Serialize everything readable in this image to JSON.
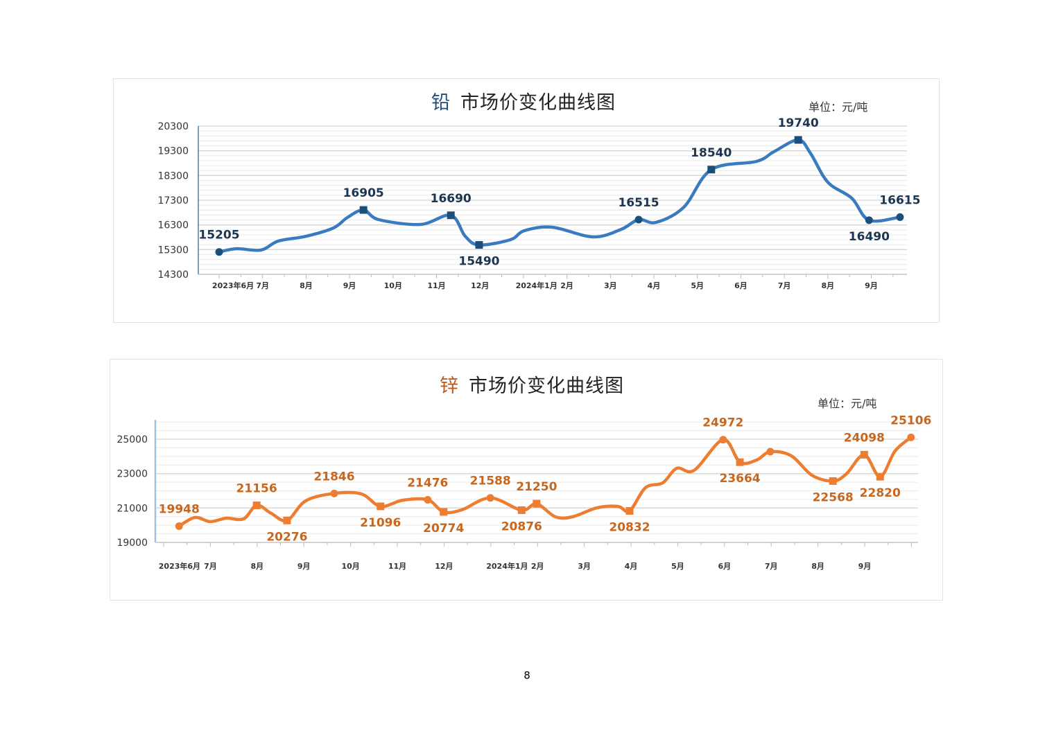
{
  "page_number": "8",
  "chart_data": [
    {
      "type": "line",
      "title_metal": "铅",
      "title_rest": "市场价变化曲线图",
      "unit": "单位：元/吨",
      "line_color": "#3a7bbf",
      "marker_color": "#1b4f7a",
      "label_color": "#1c3550",
      "title_metal_color": "#1f4e79",
      "ylim": [
        14300,
        20300
      ],
      "yticks": [
        14300,
        15300,
        16300,
        17300,
        18300,
        19300,
        20300
      ],
      "ytick_labels": [
        "14300",
        "15300",
        "16300",
        "17300",
        "18300",
        "19300",
        "20300"
      ],
      "minor_step": 200,
      "xlim": [
        -0.6,
        15.7
      ],
      "xticks": [
        {
          "m": 0.32,
          "label": "2023年6月"
        },
        {
          "m": 1,
          "label": "7月"
        },
        {
          "m": 2,
          "label": "8月"
        },
        {
          "m": 3,
          "label": "9月"
        },
        {
          "m": 4,
          "label": "10月"
        },
        {
          "m": 5,
          "label": "11月"
        },
        {
          "m": 6,
          "label": "12月"
        },
        {
          "m": 7.3,
          "label": "2024年1月"
        },
        {
          "m": 8,
          "label": "2月"
        },
        {
          "m": 9,
          "label": "3月"
        },
        {
          "m": 10,
          "label": "4月"
        },
        {
          "m": 11,
          "label": "5月"
        },
        {
          "m": 12,
          "label": "6月"
        },
        {
          "m": 13,
          "label": "7月"
        },
        {
          "m": 14,
          "label": "8月"
        },
        {
          "m": 15,
          "label": "9月"
        }
      ],
      "points": [
        {
          "m": 0,
          "v": 15205,
          "label": "15205",
          "marker": "circle",
          "pos": "above"
        },
        {
          "m": 0.4,
          "v": 15337
        },
        {
          "m": 0.96,
          "v": 15281
        },
        {
          "m": 1.36,
          "v": 15646
        },
        {
          "m": 2.0,
          "v": 15842
        },
        {
          "m": 2.63,
          "v": 16178
        },
        {
          "m": 2.95,
          "v": 16599
        },
        {
          "m": 3.32,
          "v": 16905,
          "label": "16905",
          "marker": "square",
          "pos": "above"
        },
        {
          "m": 3.67,
          "v": 16515
        },
        {
          "m": 4.63,
          "v": 16319
        },
        {
          "m": 5.33,
          "v": 16690,
          "label": "16690",
          "marker": "square",
          "pos": "above"
        },
        {
          "m": 5.66,
          "v": 15842
        },
        {
          "m": 5.98,
          "v": 15490,
          "label": "15490",
          "marker": "square",
          "pos": "below"
        },
        {
          "m": 6.7,
          "v": 15702
        },
        {
          "m": 7.02,
          "v": 16066
        },
        {
          "m": 7.66,
          "v": 16206
        },
        {
          "m": 8.6,
          "v": 15814
        },
        {
          "m": 9.25,
          "v": 16122
        },
        {
          "m": 9.65,
          "v": 16515,
          "label": "16515",
          "marker": "circle",
          "pos": "above"
        },
        {
          "m": 10.05,
          "v": 16403
        },
        {
          "m": 10.69,
          "v": 17020
        },
        {
          "m": 11.32,
          "v": 18540,
          "label": "18540",
          "marker": "square",
          "pos": "above"
        },
        {
          "m": 12.36,
          "v": 18870
        },
        {
          "m": 12.76,
          "v": 19262
        },
        {
          "m": 13.32,
          "v": 19740,
          "label": "19740",
          "marker": "square",
          "pos": "above"
        },
        {
          "m": 13.6,
          "v": 19205
        },
        {
          "m": 14.0,
          "v": 18029
        },
        {
          "m": 14.55,
          "v": 17384
        },
        {
          "m": 14.95,
          "v": 16490,
          "label": "16490",
          "marker": "circle",
          "pos": "below"
        },
        {
          "m": 15.66,
          "v": 16615,
          "label": "16615",
          "marker": "circle",
          "pos": "above"
        }
      ]
    },
    {
      "type": "line",
      "title_metal": "锌",
      "title_rest": "市场价变化曲线图",
      "unit": "单位：元/吨",
      "line_color": "#ed7d31",
      "marker_color": "#ed7d31",
      "label_color": "#c8661e",
      "title_metal_color": "#b85c1e",
      "ylim": [
        19000,
        25000
      ],
      "yticks": [
        19000,
        21000,
        23000,
        25000
      ],
      "ytick_labels": [
        "19000",
        "21000",
        "23000",
        "25000"
      ],
      "minor_step": 500,
      "xlim": [
        -0.2,
        16.3
      ],
      "xticks": [
        {
          "m": 0.34,
          "label": "2023年6月"
        },
        {
          "m": 1,
          "label": "7月"
        },
        {
          "m": 2,
          "label": "8月"
        },
        {
          "m": 3,
          "label": "9月"
        },
        {
          "m": 4,
          "label": "10月"
        },
        {
          "m": 5,
          "label": "11月"
        },
        {
          "m": 6,
          "label": "12月"
        },
        {
          "m": 7.35,
          "label": "2024年1月"
        },
        {
          "m": 8,
          "label": "2月"
        },
        {
          "m": 9,
          "label": "3月"
        },
        {
          "m": 10,
          "label": "4月"
        },
        {
          "m": 11,
          "label": "5月"
        },
        {
          "m": 12,
          "label": "6月"
        },
        {
          "m": 13,
          "label": "7月"
        },
        {
          "m": 14,
          "label": "8月"
        },
        {
          "m": 15,
          "label": "9月"
        }
      ],
      "points": [
        {
          "m": 0.33,
          "v": 19948,
          "label": "19948",
          "marker": "circle",
          "pos": "above"
        },
        {
          "m": 0.67,
          "v": 20450
        },
        {
          "m": 1.0,
          "v": 20208
        },
        {
          "m": 1.34,
          "v": 20409
        },
        {
          "m": 1.71,
          "v": 20369
        },
        {
          "m": 1.99,
          "v": 21156,
          "label": "21156",
          "marker": "square",
          "pos": "above"
        },
        {
          "m": 2.3,
          "v": 20691
        },
        {
          "m": 2.64,
          "v": 20276,
          "label": "20276",
          "marker": "square",
          "pos": "below"
        },
        {
          "m": 3.04,
          "v": 21416
        },
        {
          "m": 3.65,
          "v": 21846,
          "label": "21846",
          "marker": "circle",
          "pos": "above"
        },
        {
          "m": 4.23,
          "v": 21819
        },
        {
          "m": 4.64,
          "v": 21096,
          "label": "21096",
          "marker": "square",
          "pos": "below"
        },
        {
          "m": 5.12,
          "v": 21456
        },
        {
          "m": 5.65,
          "v": 21476,
          "label": "21476",
          "marker": "circle",
          "pos": "above"
        },
        {
          "m": 5.99,
          "v": 20774,
          "label": "20774",
          "marker": "square",
          "pos": "below"
        },
        {
          "m": 6.38,
          "v": 20893
        },
        {
          "m": 6.99,
          "v": 21588,
          "label": "21588",
          "marker": "circle",
          "pos": "above"
        },
        {
          "m": 7.66,
          "v": 20876,
          "label": "20876",
          "marker": "square",
          "pos": "below"
        },
        {
          "m": 7.98,
          "v": 21250,
          "label": "21250",
          "marker": "square",
          "pos": "above"
        },
        {
          "m": 8.38,
          "v": 20490
        },
        {
          "m": 8.75,
          "v": 20490
        },
        {
          "m": 9.27,
          "v": 21013
        },
        {
          "m": 9.72,
          "v": 21094
        },
        {
          "m": 9.97,
          "v": 20832,
          "label": "20832",
          "marker": "square",
          "pos": "below"
        },
        {
          "m": 10.31,
          "v": 22181
        },
        {
          "m": 10.68,
          "v": 22463
        },
        {
          "m": 10.98,
          "v": 23309
        },
        {
          "m": 11.35,
          "v": 23188
        },
        {
          "m": 11.97,
          "v": 24972,
          "label": "24972",
          "marker": "circle",
          "pos": "above"
        },
        {
          "m": 12.33,
          "v": 23664,
          "label": "23664",
          "marker": "square",
          "pos": "below"
        },
        {
          "m": 12.69,
          "v": 23792
        },
        {
          "m": 12.98,
          "v": 24275,
          "marker": "circle"
        },
        {
          "m": 13.43,
          "v": 24033
        },
        {
          "m": 13.87,
          "v": 22906
        },
        {
          "m": 14.32,
          "v": 22568,
          "label": "22568",
          "marker": "square",
          "pos": "below"
        },
        {
          "m": 14.61,
          "v": 22987
        },
        {
          "m": 14.99,
          "v": 24098,
          "label": "24098",
          "marker": "square",
          "pos": "above"
        },
        {
          "m": 15.33,
          "v": 22820,
          "label": "22820",
          "marker": "square",
          "pos": "below"
        },
        {
          "m": 15.65,
          "v": 24315
        },
        {
          "m": 15.99,
          "v": 25106,
          "label": "25106",
          "marker": "circle",
          "pos": "above"
        }
      ]
    }
  ]
}
